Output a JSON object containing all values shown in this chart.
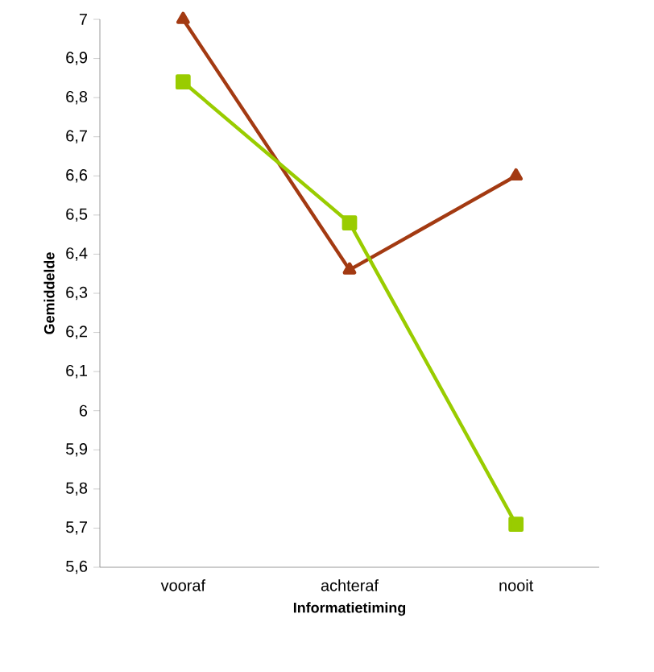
{
  "chart_data": {
    "type": "line",
    "xlabel": "Informatietiming",
    "ylabel": "Gemiddelde",
    "categories": [
      "vooraf",
      "achteraf",
      "nooit"
    ],
    "series": [
      {
        "color": "#a33a12",
        "values": [
          7.0,
          6.36,
          6.6
        ],
        "marker": "triangle"
      },
      {
        "color": "#99cc00",
        "values": [
          6.84,
          6.48,
          5.71
        ],
        "marker": "square"
      }
    ],
    "ylim": [
      5.6,
      7
    ],
    "yticks": [
      {
        "value": 5.6,
        "label": "5,6"
      },
      {
        "value": 5.7,
        "label": "5,7"
      },
      {
        "value": 5.8,
        "label": "5,8"
      },
      {
        "value": 5.9,
        "label": "5,9"
      },
      {
        "value": 6,
        "label": "6"
      },
      {
        "value": 6.1,
        "label": "6,1"
      },
      {
        "value": 6.2,
        "label": "6,2"
      },
      {
        "value": 6.3,
        "label": "6,3"
      },
      {
        "value": 6.4,
        "label": "6,4"
      },
      {
        "value": 6.5,
        "label": "6,5"
      },
      {
        "value": 6.6,
        "label": "6,6"
      },
      {
        "value": 6.7,
        "label": "6,7"
      },
      {
        "value": 6.8,
        "label": "6,8"
      },
      {
        "value": 6.9,
        "label": "6,9"
      },
      {
        "value": 7,
        "label": "7"
      }
    ],
    "grid": false
  }
}
